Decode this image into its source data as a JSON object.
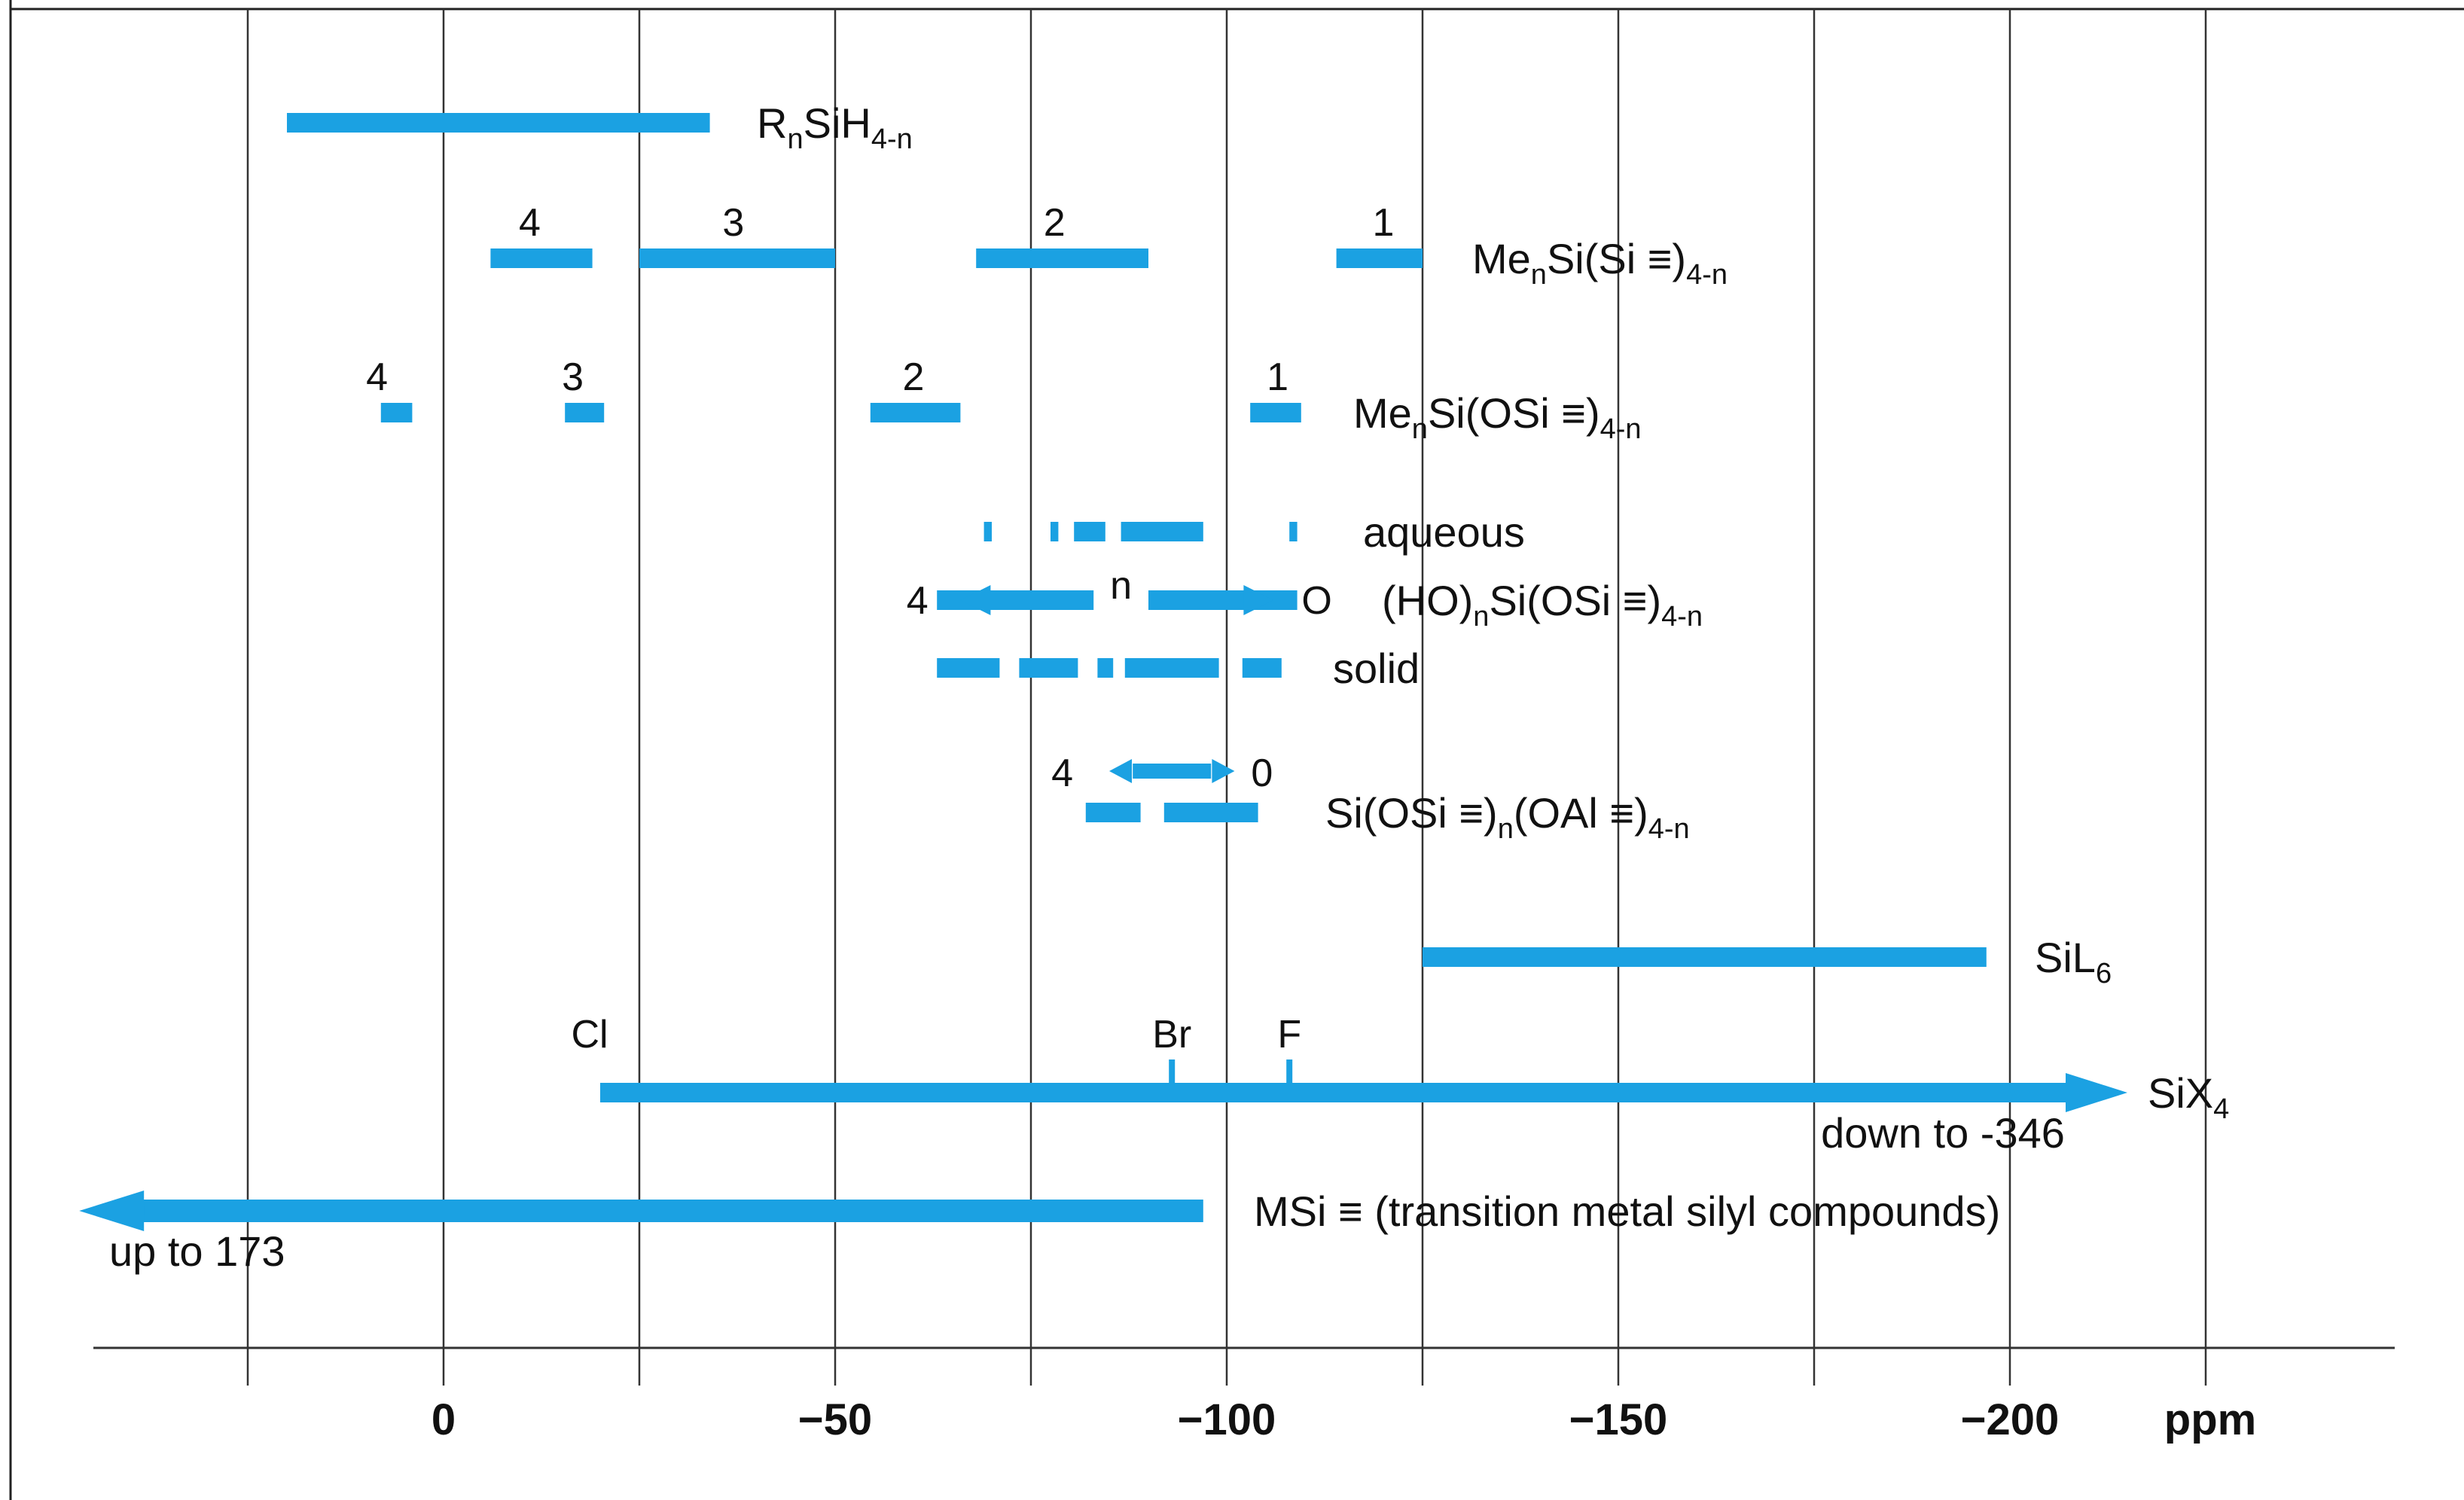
{
  "chart_data": {
    "type": "range",
    "unit": "ppm",
    "xlabel": "ppm",
    "x_axis": {
      "direction": "decreasing",
      "xlim": [
        47,
        -225
      ],
      "ticks": [
        0,
        -50,
        -100,
        -150,
        -200
      ]
    },
    "grid": {
      "vertical_every": 25,
      "visible": true
    },
    "bar_color": "#1ba1e2",
    "rows": [
      {
        "id": "rnsih",
        "label_main": "R",
        "label_parts": [
          {
            "t": "R"
          },
          {
            "t": "n",
            "s": "sub"
          },
          {
            "t": "SiH"
          },
          {
            "t": "4-n",
            "s": "sub"
          }
        ],
        "bars": [
          [
            20,
            -34
          ]
        ]
      },
      {
        "id": "mensisi",
        "label_parts": [
          {
            "t": "Me"
          },
          {
            "t": "n",
            "s": "sub"
          },
          {
            "t": "Si(Si ≡)"
          },
          {
            "t": "4-n",
            "s": "sub"
          }
        ],
        "bars": [
          [
            -6,
            -19
          ],
          [
            -25,
            -50
          ],
          [
            -68,
            -90
          ],
          [
            -114,
            -125
          ]
        ],
        "counts": [
          {
            "text": "4",
            "x": -11
          },
          {
            "text": "3",
            "x": -37
          },
          {
            "text": "2",
            "x": -78
          },
          {
            "text": "1",
            "x": -120
          }
        ]
      },
      {
        "id": "mensiosi",
        "label_parts": [
          {
            "t": "Me"
          },
          {
            "t": "n",
            "s": "sub"
          },
          {
            "t": "Si(OSi ≡)"
          },
          {
            "t": "4-n",
            "s": "sub"
          }
        ],
        "bars": [
          [
            8,
            4
          ],
          [
            -15.5,
            -20.5
          ],
          [
            -54.5,
            -66
          ],
          [
            -103,
            -109.5
          ]
        ],
        "counts": [
          {
            "text": "4",
            "x": 8.5
          },
          {
            "text": "3",
            "x": -16.5
          },
          {
            "text": "2",
            "x": -60
          },
          {
            "text": "1",
            "x": -106.5
          }
        ]
      },
      {
        "id": "aqueous",
        "label_parts": [
          {
            "t": "aqueous"
          }
        ],
        "bars": [
          [
            -69,
            -70
          ],
          [
            -77.5,
            -78.5
          ],
          [
            -80.5,
            -84.5
          ],
          [
            -86.5,
            -97
          ],
          [
            -108,
            -109
          ]
        ]
      },
      {
        "id": "honsi",
        "label_parts": [
          {
            "t": "(HO)"
          },
          {
            "t": "n",
            "s": "sub"
          },
          {
            "t": "Si(OSi ≡)"
          },
          {
            "t": "4-n",
            "s": "sub"
          }
        ],
        "arrow_left": [
          -83,
          -66
        ],
        "arrow_right": [
          -90,
          -106
        ],
        "inner": "n",
        "end_left": "4",
        "end_right": "O"
      },
      {
        "id": "solid",
        "label_parts": [
          {
            "t": "solid"
          }
        ],
        "bars": [
          [
            -63,
            -71
          ],
          [
            -73.5,
            -81
          ],
          [
            -83.5,
            -85.5
          ],
          [
            -87,
            -99
          ],
          [
            -102,
            -107
          ]
        ]
      },
      {
        "id": "sialo",
        "label_parts": [
          {
            "t": "Si(OSi ≡)"
          },
          {
            "t": "n",
            "s": "sub"
          },
          {
            "t": "(OAl ≡)"
          },
          {
            "t": "4-n",
            "s": "sub"
          }
        ],
        "arrow_double": [
          -85,
          -101
        ],
        "end_left": "4",
        "end_right": "0",
        "bars": [
          [
            -82,
            -89
          ],
          [
            -92,
            -104
          ]
        ]
      },
      {
        "id": "sil6",
        "label_parts": [
          {
            "t": "SiL"
          },
          {
            "t": "6",
            "s": "sub"
          }
        ],
        "bars": [
          [
            -125,
            -197
          ]
        ]
      },
      {
        "id": "six4",
        "label_parts": [
          {
            "t": "SiX"
          },
          {
            "t": "4",
            "s": "sub"
          }
        ],
        "arrow_to_right_from": -20,
        "arrow_to_right_to": -215,
        "markers": [
          {
            "text": "Cl",
            "x": -20
          },
          {
            "text": "Br",
            "x": -93
          },
          {
            "text": "F",
            "x": -108
          }
        ],
        "note": "down to -346"
      },
      {
        "id": "msi",
        "label_parts": [
          {
            "t": "MSi ≡ (transition metal silyl compounds)"
          }
        ],
        "arrow_to_left_from": -97,
        "arrow_to_left_to": 47,
        "note": "up to 173"
      }
    ]
  }
}
